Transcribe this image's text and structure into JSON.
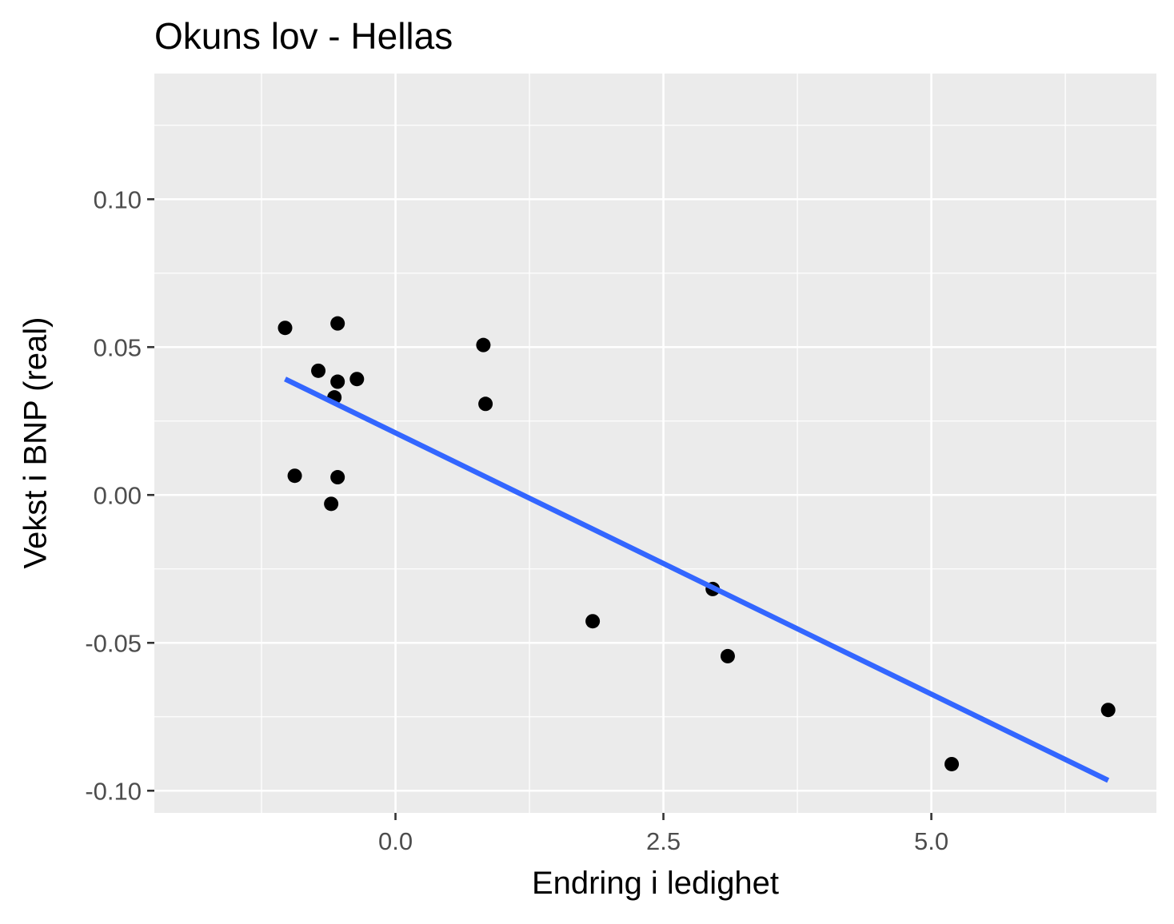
{
  "chart_data": {
    "type": "scatter",
    "title": "Okuns lov - Hellas",
    "xlabel": "Endring i ledighet",
    "ylabel": "Vekst i BNP (real)",
    "xlim": [
      -2.25,
      7.1
    ],
    "ylim": [
      -0.1075,
      0.1425
    ],
    "x_ticks": [
      0.0,
      2.5,
      5.0
    ],
    "x_tick_labels": [
      "0.0",
      "2.5",
      "5.0"
    ],
    "y_ticks": [
      -0.1,
      -0.05,
      0.0,
      0.05,
      0.1
    ],
    "y_tick_labels": [
      "-0.10",
      "-0.05",
      "0.00",
      "0.05",
      "0.10"
    ],
    "grid": true,
    "legend": "none",
    "colors": {
      "panel": "#ebebeb",
      "grid": "#ffffff",
      "points": "#000000",
      "trend": "#3366ff"
    },
    "points": [
      {
        "x": -1.03,
        "y": 0.0565
      },
      {
        "x": -0.54,
        "y": 0.058
      },
      {
        "x": -0.72,
        "y": 0.042
      },
      {
        "x": -0.54,
        "y": 0.0383
      },
      {
        "x": -0.36,
        "y": 0.0392
      },
      {
        "x": -0.57,
        "y": 0.033
      },
      {
        "x": -0.94,
        "y": 0.0065
      },
      {
        "x": -0.54,
        "y": 0.006
      },
      {
        "x": -0.6,
        "y": -0.003
      },
      {
        "x": 0.82,
        "y": 0.0507
      },
      {
        "x": 0.84,
        "y": 0.0308
      },
      {
        "x": 1.84,
        "y": -0.0427
      },
      {
        "x": 2.96,
        "y": -0.0318
      },
      {
        "x": 3.1,
        "y": -0.0545
      },
      {
        "x": 5.19,
        "y": -0.091
      },
      {
        "x": 6.65,
        "y": -0.0727
      }
    ],
    "trend_line": {
      "x": [
        -1.03,
        6.65
      ],
      "y": [
        0.0392,
        -0.0965
      ]
    }
  }
}
